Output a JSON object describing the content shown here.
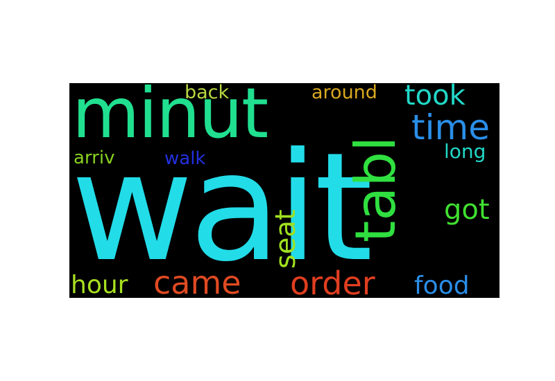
{
  "words": [
    {
      "id": "wait",
      "text": "wait",
      "color": "#22dce8"
    },
    {
      "id": "minut",
      "text": "minut",
      "color": "#20e090"
    },
    {
      "id": "tabl",
      "text": "tabl",
      "color": "#30e040"
    },
    {
      "id": "time",
      "text": "time",
      "color": "#2a8ee8"
    },
    {
      "id": "took",
      "text": "took",
      "color": "#22d8c8"
    },
    {
      "id": "seat",
      "text": "seat",
      "color": "#a0e020"
    },
    {
      "id": "got",
      "text": "got",
      "color": "#40e030"
    },
    {
      "id": "order",
      "text": "order",
      "color": "#e03e20"
    },
    {
      "id": "came",
      "text": "came",
      "color": "#e04a22"
    },
    {
      "id": "hour",
      "text": "hour",
      "color": "#a8e020"
    },
    {
      "id": "food",
      "text": "food",
      "color": "#2a8ee8"
    },
    {
      "id": "back",
      "text": "back",
      "color": "#b8d840"
    },
    {
      "id": "around",
      "text": "around",
      "color": "#d8a820"
    },
    {
      "id": "arriv",
      "text": "arriv",
      "color": "#88d020"
    },
    {
      "id": "walk",
      "text": "walk",
      "color": "#2230e0"
    },
    {
      "id": "long",
      "text": "long",
      "color": "#22d8c8"
    }
  ]
}
